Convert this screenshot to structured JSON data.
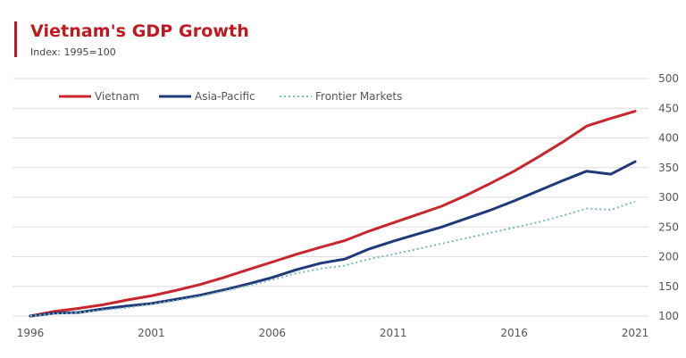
{
  "header": {
    "title": "Vietnam's GDP Growth",
    "subtitle": "Index: 1995=100"
  },
  "colors": {
    "accent": "#c0181e",
    "title": "#c0181e",
    "grid": "#dddddd",
    "axis": "#999999"
  },
  "chart_data": {
    "type": "line",
    "title": "Vietnam's GDP Growth",
    "subtitle": "Index: 1995=100",
    "xlabel": "",
    "ylabel": "",
    "x": [
      1996,
      1997,
      1998,
      1999,
      2000,
      2001,
      2002,
      2003,
      2004,
      2005,
      2006,
      2007,
      2008,
      2009,
      2010,
      2011,
      2012,
      2013,
      2014,
      2015,
      2016,
      2017,
      2018,
      2019,
      2020,
      2021
    ],
    "xticks": [
      1996,
      2001,
      2006,
      2011,
      2016,
      2021
    ],
    "xlim": [
      1996,
      2021
    ],
    "ylim": [
      100,
      500
    ],
    "yticks": [
      100,
      150,
      200,
      250,
      300,
      350,
      400,
      450,
      500
    ],
    "y_axis_position": "right",
    "grid": "horizontal",
    "legend_position": "top-left",
    "series": [
      {
        "name": "Vietnam",
        "color": "#c8262c",
        "style": "solid",
        "values": [
          100,
          108,
          113,
          119,
          127,
          134,
          143,
          153,
          165,
          178,
          191,
          204,
          216,
          227,
          243,
          257,
          271,
          285,
          303,
          323,
          344,
          368,
          393,
          420,
          433,
          445
        ]
      },
      {
        "name": "Asia-Pacific",
        "color": "#1f3a7a",
        "style": "solid",
        "values": [
          100,
          105,
          106,
          112,
          117,
          121,
          128,
          135,
          144,
          154,
          165,
          178,
          189,
          196,
          213,
          226,
          238,
          250,
          264,
          278,
          294,
          311,
          328,
          344,
          339,
          360
        ]
      },
      {
        "name": "Frontier Markets",
        "color": "#7ab8bf",
        "style": "dotted",
        "values": [
          100,
          104,
          106,
          110,
          114,
          120,
          126,
          133,
          142,
          151,
          161,
          172,
          180,
          185,
          196,
          204,
          213,
          222,
          231,
          240,
          249,
          258,
          269,
          281,
          279,
          293
        ]
      }
    ]
  }
}
